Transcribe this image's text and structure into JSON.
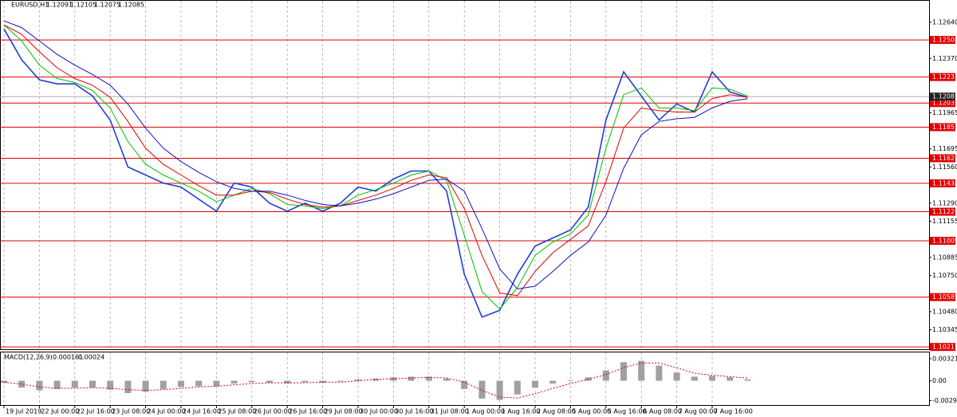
{
  "chart_data": [
    {
      "type": "line",
      "title": "EURUSD,H1",
      "ohlc": [
        1.12091,
        1.12105,
        1.12075,
        1.12085
      ],
      "categories": [
        "19 Jul 2019",
        null,
        "22 Jul 00:00",
        null,
        "22 Jul 16:00",
        null,
        "23 Jul 08:00",
        null,
        "24 Jul 00:00",
        null,
        "24 Jul 16:00",
        null,
        "25 Jul 08:00",
        null,
        "26 Jul 00:00",
        null,
        "26 Jul 16:00",
        null,
        "29 Jul 08:00",
        null,
        "30 Jul 00:00",
        null,
        "30 Jul 16:00",
        null,
        "31 Jul 08:00",
        null,
        "1 Aug 00:00",
        null,
        "1 Aug 16:00",
        null,
        "2 Aug 08:00",
        null,
        "5 Aug 00:00",
        null,
        "5 Aug 16:00",
        null,
        "6 Aug 08:00",
        null,
        "7 Aug 00:00",
        null,
        "7 Aug 16:00",
        null,
        null
      ],
      "series": [
        {
          "color": "#1f3fd6",
          "width": 1.6,
          "values": [
            1.1259,
            1.1236,
            1.1221,
            1.1218,
            1.1218,
            1.1209,
            1.1191,
            1.1156,
            1.115,
            1.1144,
            1.1141,
            1.1132,
            1.1123,
            1.1144,
            1.1141,
            1.1129,
            1.1123,
            1.1129,
            1.1123,
            1.1129,
            1.1141,
            1.1138,
            1.1147,
            1.1153,
            1.1153,
            1.1138,
            1.1076,
            1.1044,
            1.1049,
            1.1076,
            1.1097,
            1.1103,
            1.1109,
            1.1126,
            1.1191,
            1.1227,
            1.1209,
            1.1191,
            1.1203,
            1.1197,
            1.1227,
            1.1212,
            1.1208
          ]
        },
        {
          "color": "#00c000",
          "width": 1,
          "values": [
            1.1262,
            1.125,
            1.1232,
            1.1222,
            1.1219,
            1.1213,
            1.12,
            1.1175,
            1.1158,
            1.115,
            1.1144,
            1.1138,
            1.113,
            1.1135,
            1.114,
            1.1136,
            1.1128,
            1.1127,
            1.1125,
            1.1127,
            1.1135,
            1.1139,
            1.1144,
            1.115,
            1.1153,
            1.1146,
            1.1105,
            1.1063,
            1.105,
            1.1066,
            1.109,
            1.11,
            1.1106,
            1.112,
            1.117,
            1.121,
            1.1215,
            1.12,
            1.12,
            1.1198,
            1.1215,
            1.1214,
            1.1209
          ]
        },
        {
          "color": "#e00000",
          "width": 1,
          "values": [
            1.1262,
            1.1255,
            1.1242,
            1.123,
            1.1222,
            1.1217,
            1.1208,
            1.119,
            1.117,
            1.1158,
            1.115,
            1.1142,
            1.1135,
            1.1135,
            1.1138,
            1.1137,
            1.1132,
            1.1128,
            1.1126,
            1.1127,
            1.1131,
            1.1135,
            1.114,
            1.1146,
            1.115,
            1.1148,
            1.1125,
            1.109,
            1.1062,
            1.106,
            1.1078,
            1.1092,
            1.1102,
            1.1112,
            1.1145,
            1.1185,
            1.12,
            1.1198,
            1.1197,
            1.1197,
            1.1207,
            1.121,
            1.1208
          ]
        },
        {
          "color": "#1010c0",
          "width": 1,
          "values": [
            1.1265,
            1.126,
            1.125,
            1.124,
            1.1232,
            1.1225,
            1.1217,
            1.1203,
            1.1185,
            1.117,
            1.116,
            1.1152,
            1.1145,
            1.114,
            1.1138,
            1.1138,
            1.1135,
            1.1131,
            1.1128,
            1.1127,
            1.1129,
            1.1132,
            1.1136,
            1.1141,
            1.1146,
            1.1147,
            1.1138,
            1.111,
            1.108,
            1.1065,
            1.1067,
            1.1078,
            1.109,
            1.11,
            1.112,
            1.1155,
            1.118,
            1.119,
            1.1192,
            1.1193,
            1.12,
            1.1205,
            1.1207
          ]
        }
      ],
      "levels": [
        1.12508,
        1.12231,
        1.12037,
        1.11857,
        1.11625,
        1.11438,
        1.11226,
        1.11009,
        1.10589,
        1.10217
      ],
      "level_color": "#e00000",
      "ylim": [
        1.102,
        1.128
      ],
      "yticks": [
        {
          "value": 1.1264,
          "label": "1.12640"
        },
        {
          "value": 1.1237,
          "label": "1.12370"
        },
        1.11965,
        1.11695,
        {
          "value": 1.1156,
          "label": "1.11560"
        },
        {
          "value": 1.1129,
          "label": "1.11290"
        },
        1.11155,
        1.10885,
        {
          "value": 1.1075,
          "label": "1.10750"
        },
        {
          "value": 1.1048,
          "label": "1.10480"
        },
        1.10345
      ],
      "grid": true
    },
    {
      "type": "bar",
      "title": "MACD(12,26,9)",
      "readings": [
        0.000161,
        0.00024
      ],
      "series": [
        {
          "type": "bar",
          "color": "#a0a0a0",
          "values": [
            -0.0003,
            -0.001,
            -0.0014,
            -0.0012,
            -0.001,
            -0.001,
            -0.0013,
            -0.0018,
            -0.0016,
            -0.0012,
            -0.0009,
            -0.0008,
            -0.0008,
            -0.0004,
            -0.0002,
            -0.0003,
            -0.0004,
            -0.0002,
            -0.0003,
            -0.0001,
            0.0002,
            0.0003,
            0.0005,
            0.0006,
            0.0006,
            0.0003,
            -0.0012,
            -0.0026,
            -0.0028,
            -0.002,
            -0.001,
            -0.0004,
            0.0001,
            0.0005,
            0.0015,
            0.0027,
            0.0029,
            0.0022,
            0.0012,
            0.0006,
            0.0007,
            0.0005,
            0.0002
          ]
        },
        {
          "type": "line",
          "color": "#e00000",
          "dashed": true,
          "values": [
            -0.0002,
            -0.0005,
            -0.0009,
            -0.0011,
            -0.0011,
            -0.001,
            -0.0011,
            -0.0013,
            -0.0014,
            -0.0013,
            -0.0011,
            -0.0009,
            -0.0008,
            -0.0006,
            -0.0004,
            -0.0003,
            -0.0003,
            -0.0003,
            -0.0002,
            -0.0002,
            0,
            0.0002,
            0.0003,
            0.0004,
            0.0005,
            0.0004,
            -0.0002,
            -0.0014,
            -0.0024,
            -0.0025,
            -0.0019,
            -0.0011,
            -0.0004,
            0.0002,
            0.0009,
            0.0019,
            0.0026,
            0.0026,
            0.0019,
            0.0011,
            0.0008,
            0.0006,
            0.0004
          ]
        }
      ],
      "ylim": [
        -0.00354,
        0.00413
      ],
      "yticks": [
        0.00321,
        {
          "value": 0,
          "label": "0.00"
        },
        -0.002908
      ]
    }
  ]
}
